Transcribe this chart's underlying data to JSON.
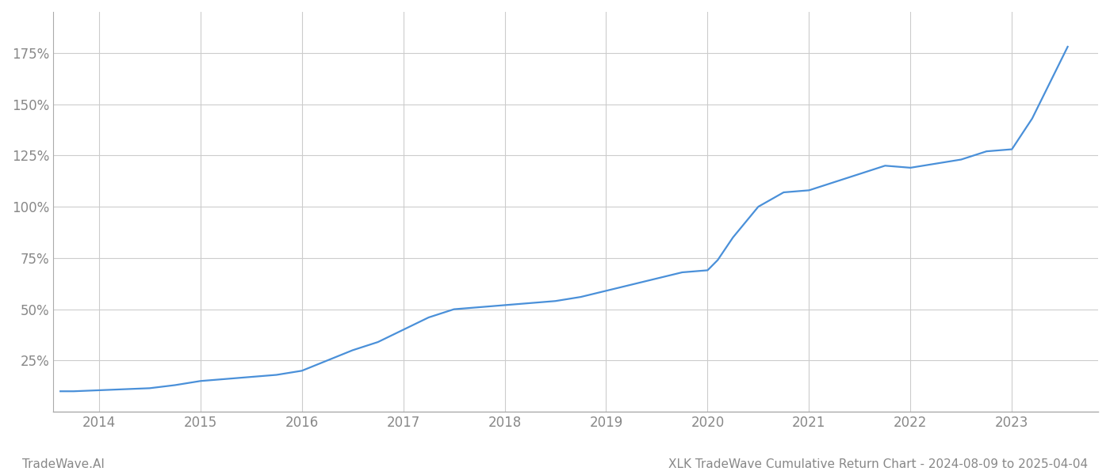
{
  "title": "XLK TradeWave Cumulative Return Chart - 2024-08-09 to 2025-04-04",
  "watermark": "TradeWave.AI",
  "line_color": "#4a90d9",
  "background_color": "#ffffff",
  "grid_color": "#cccccc",
  "tick_color": "#888888",
  "x_years": [
    2014,
    2015,
    2016,
    2017,
    2018,
    2019,
    2020,
    2021,
    2022,
    2023
  ],
  "y_ticks": [
    25,
    50,
    75,
    100,
    125,
    150,
    175
  ],
  "xlim": [
    2013.55,
    2023.85
  ],
  "ylim": [
    0,
    195
  ],
  "data_x": [
    2013.62,
    2013.75,
    2014.0,
    2014.25,
    2014.5,
    2014.75,
    2015.0,
    2015.25,
    2015.5,
    2015.75,
    2016.0,
    2016.25,
    2016.5,
    2016.75,
    2017.0,
    2017.25,
    2017.5,
    2017.75,
    2018.0,
    2018.25,
    2018.5,
    2018.75,
    2019.0,
    2019.25,
    2019.5,
    2019.75,
    2020.0,
    2020.1,
    2020.25,
    2020.5,
    2020.75,
    2021.0,
    2021.25,
    2021.5,
    2021.75,
    2022.0,
    2022.25,
    2022.5,
    2022.75,
    2023.0,
    2023.2,
    2023.4,
    2023.55
  ],
  "data_y": [
    10,
    10,
    10.5,
    11,
    11.5,
    13,
    15,
    16,
    17,
    18,
    20,
    25,
    30,
    34,
    40,
    46,
    50,
    51,
    52,
    53,
    54,
    56,
    59,
    62,
    65,
    68,
    69,
    74,
    85,
    100,
    107,
    108,
    112,
    116,
    120,
    119,
    121,
    123,
    127,
    128,
    143,
    163,
    178
  ]
}
